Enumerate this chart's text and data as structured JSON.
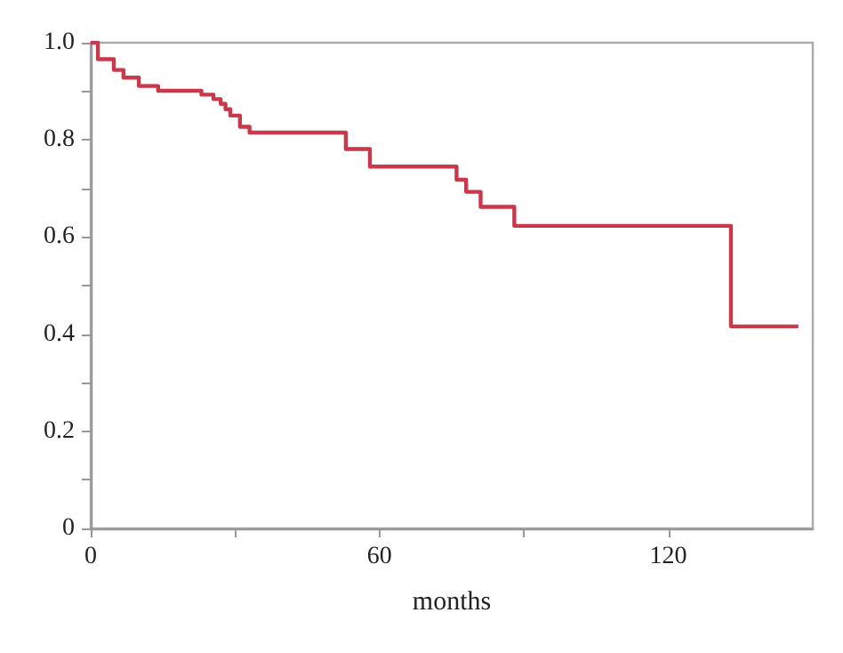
{
  "chart_data": {
    "type": "step",
    "xlabel": "months",
    "x": [
      0,
      1.5,
      4.8,
      6.8,
      10,
      14,
      23,
      25.5,
      27,
      28,
      29,
      31,
      33,
      53,
      58,
      76,
      78,
      81,
      88,
      133,
      147
    ],
    "series": [
      {
        "color": "#c8394b",
        "values": [
          1.0,
          0.966,
          0.944,
          0.928,
          0.911,
          0.901,
          0.893,
          0.884,
          0.874,
          0.863,
          0.85,
          0.827,
          0.815,
          0.781,
          0.745,
          0.718,
          0.693,
          0.662,
          0.623,
          0.416,
          0.416
        ]
      }
    ],
    "xlim": [
      0,
      150
    ],
    "xticks": [
      0,
      {
        "value": 30,
        "label": null
      },
      60,
      {
        "value": 90,
        "label": null
      },
      120
    ],
    "ylim": [
      0,
      1
    ],
    "yticks": [
      {
        "value": 0,
        "label": "0"
      },
      {
        "value": 0.1,
        "label": null
      },
      {
        "value": 0.2,
        "label": "0.2"
      },
      {
        "value": 0.3,
        "label": null
      },
      {
        "value": 0.4,
        "label": "0.4"
      },
      {
        "value": 0.5,
        "label": null
      },
      {
        "value": 0.6,
        "label": "0.6"
      },
      {
        "value": 0.7,
        "label": null
      },
      {
        "value": 0.8,
        "label": "0.8"
      },
      {
        "value": 0.9,
        "label": null
      },
      {
        "value": 1,
        "label": "1.0"
      }
    ],
    "grid": false,
    "marker": "none",
    "line_style": "solid"
  }
}
